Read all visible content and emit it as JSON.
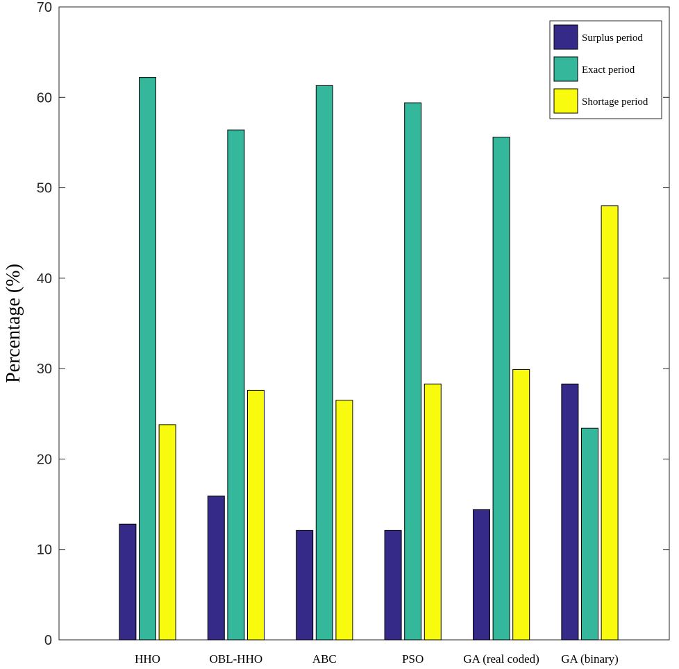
{
  "chart_data": {
    "type": "bar",
    "title": "",
    "xlabel": "",
    "ylabel": "Percentage (%)",
    "ylim": [
      0,
      70
    ],
    "yticks": [
      0,
      10,
      20,
      30,
      40,
      50,
      60,
      70
    ],
    "grid": false,
    "legend_position": "top-right",
    "categories": [
      "HHO",
      "OBL-HHO",
      "ABC",
      "PSO",
      "GA (real coded)",
      "GA (binary)"
    ],
    "series": [
      {
        "name": "Surplus period",
        "color": "#352a87",
        "values": [
          12.8,
          15.9,
          12.1,
          12.1,
          14.4,
          28.3
        ]
      },
      {
        "name": "Exact period",
        "color": "#35b79b",
        "values": [
          62.2,
          56.4,
          61.3,
          59.4,
          55.6,
          23.4
        ]
      },
      {
        "name": "Shortage period",
        "color": "#f9fb0e",
        "values": [
          23.8,
          27.6,
          26.5,
          28.3,
          29.9,
          48.0
        ]
      }
    ]
  }
}
